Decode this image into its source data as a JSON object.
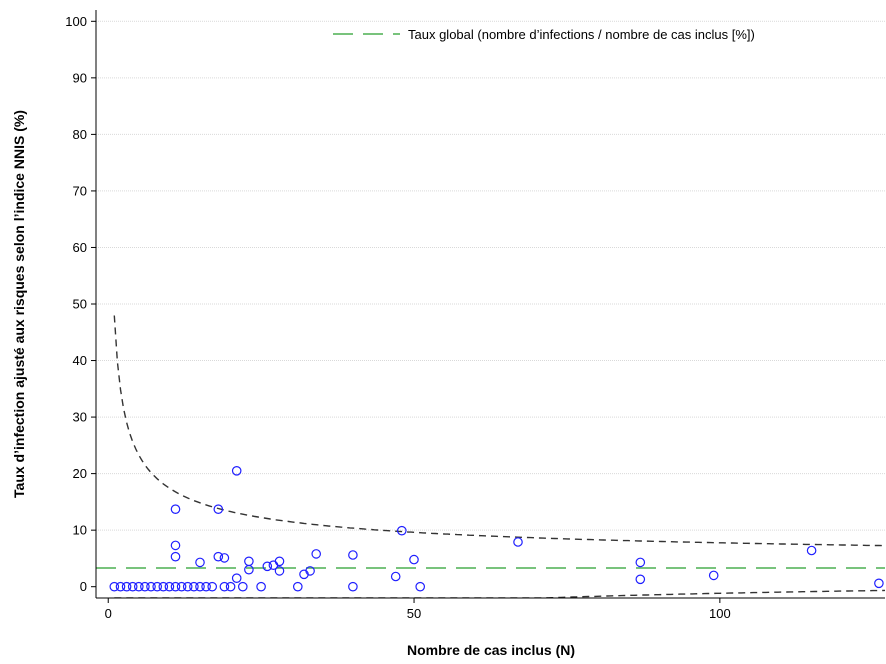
{
  "chart_data": {
    "type": "scatter",
    "xlabel": "Nombre de cas inclus (N)",
    "ylabel": "Taux d’infection ajusté aux risques selon l’indice NNIS (%)",
    "xlim": [
      -2,
      127
    ],
    "ylim": [
      -2,
      102
    ],
    "xticks": [
      "0",
      "50",
      "100"
    ],
    "yticks": [
      "0",
      "10",
      "20",
      "30",
      "40",
      "50",
      "60",
      "70",
      "80",
      "90",
      "100"
    ],
    "grid": "horizontal",
    "legend_position": "top-right",
    "legend": {
      "label": "Taux global (nombre d’infections / nombre de cas inclus [%])",
      "color": "#4caf50"
    },
    "overall_rate": 3.3,
    "colors": {
      "points": "#1f1fff",
      "overall_line": "#4caf50",
      "limits": "#333333",
      "grid": "#d9d9d9"
    },
    "points": [
      [
        1,
        0
      ],
      [
        2,
        0
      ],
      [
        3,
        0
      ],
      [
        4,
        0
      ],
      [
        5,
        0
      ],
      [
        6,
        0
      ],
      [
        7,
        0
      ],
      [
        8,
        0
      ],
      [
        9,
        0
      ],
      [
        10,
        0
      ],
      [
        11,
        0
      ],
      [
        12,
        0
      ],
      [
        13,
        0
      ],
      [
        14,
        0
      ],
      [
        15,
        0
      ],
      [
        16,
        0
      ],
      [
        17,
        0
      ],
      [
        19,
        0
      ],
      [
        20,
        0
      ],
      [
        22,
        0
      ],
      [
        25,
        0
      ],
      [
        31,
        0
      ],
      [
        40,
        0
      ],
      [
        51,
        0
      ],
      [
        11,
        13.7
      ],
      [
        11,
        7.3
      ],
      [
        11,
        5.3
      ],
      [
        15,
        4.3
      ],
      [
        18,
        13.7
      ],
      [
        18,
        5.3
      ],
      [
        19,
        5.1
      ],
      [
        21,
        20.5
      ],
      [
        21,
        1.5
      ],
      [
        23,
        4.5
      ],
      [
        23,
        3.0
      ],
      [
        26,
        3.6
      ],
      [
        27,
        3.8
      ],
      [
        28,
        4.5
      ],
      [
        28,
        2.8
      ],
      [
        32,
        2.2
      ],
      [
        33,
        2.8
      ],
      [
        34,
        5.8
      ],
      [
        40,
        5.6
      ],
      [
        47,
        1.8
      ],
      [
        48,
        9.9
      ],
      [
        50,
        4.8
      ],
      [
        67,
        7.9
      ],
      [
        87,
        4.3
      ],
      [
        87,
        1.3
      ],
      [
        99,
        2.0
      ],
      [
        115,
        6.4
      ],
      [
        126,
        0.6
      ]
    ]
  }
}
